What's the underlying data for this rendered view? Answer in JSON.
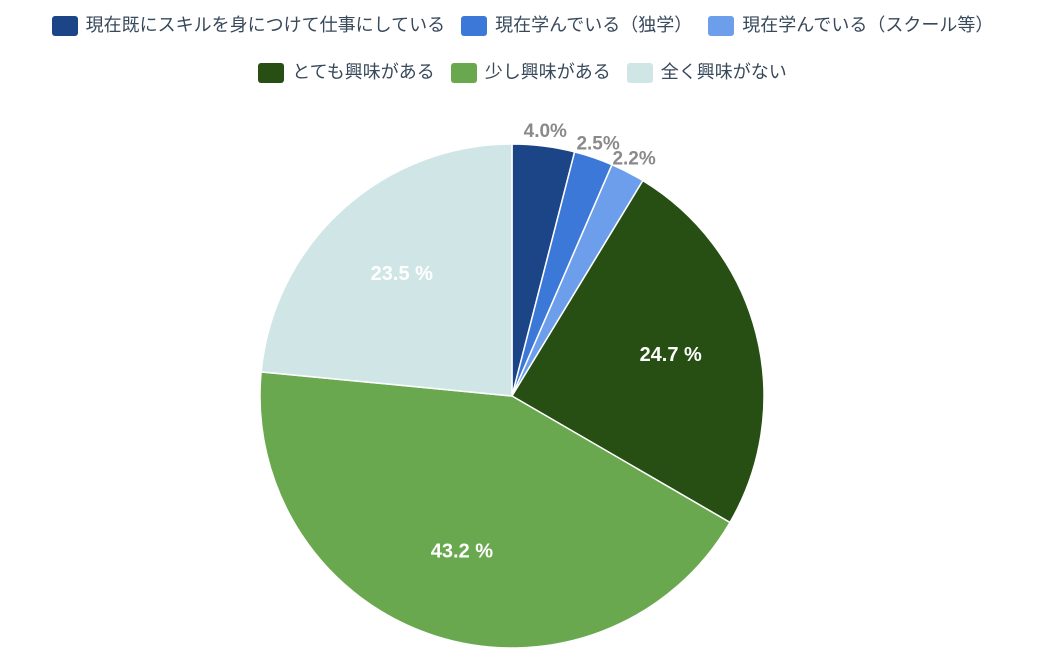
{
  "chart_data": {
    "type": "pie",
    "title": "",
    "categories": [
      "現在既にスキルを身につけて仕事にしている",
      "現在学んでいる（独学）",
      "現在学んでいる（スクール等）",
      "とても興味がある",
      "少し興味がある",
      "全く興味がない"
    ],
    "values": [
      4.0,
      2.5,
      2.2,
      24.7,
      43.2,
      23.5
    ],
    "labels": [
      "4.0%",
      "2.5%",
      "2.2%",
      "24.7 %",
      "43.2 %",
      "23.5 %"
    ],
    "colors": [
      "#1c4587",
      "#3c78d8",
      "#6d9eeb",
      "#274e13",
      "#6aa84f",
      "#d0e6e6"
    ],
    "legend_position": "top"
  }
}
